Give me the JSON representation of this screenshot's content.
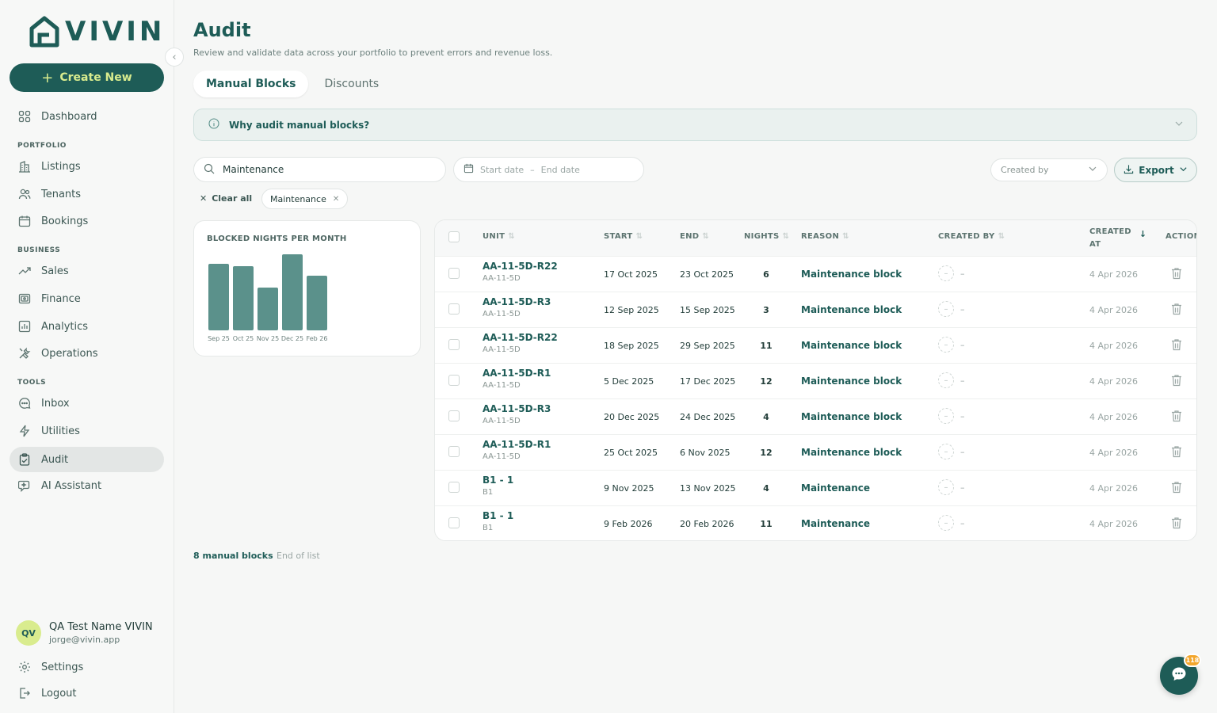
{
  "brand": {
    "name": "VIVIN",
    "color": "#1e5c57",
    "accent": "#d9ec8e"
  },
  "sidebar": {
    "create_label": "Create New",
    "collapse_icon": "chevron-left-icon",
    "dashboard": {
      "label": "Dashboard",
      "icon": "grid-icon"
    },
    "sections": {
      "portfolio": "PORTFOLIO",
      "business": "BUSINESS",
      "tools": "TOOLS"
    },
    "portfolio_items": [
      {
        "label": "Listings",
        "icon": "building-icon"
      },
      {
        "label": "Tenants",
        "icon": "users-icon"
      },
      {
        "label": "Bookings",
        "icon": "calendar-icon"
      }
    ],
    "business_items": [
      {
        "label": "Sales",
        "icon": "trend-up-icon"
      },
      {
        "label": "Finance",
        "icon": "wallet-icon"
      },
      {
        "label": "Analytics",
        "icon": "bar-chart-icon"
      },
      {
        "label": "Operations",
        "icon": "tools-icon"
      }
    ],
    "tools_items": [
      {
        "label": "Inbox",
        "icon": "chat-icon"
      },
      {
        "label": "Utilities",
        "icon": "bolt-icon"
      },
      {
        "label": "Audit",
        "icon": "clipboard-check-icon",
        "active": true
      },
      {
        "label": "AI Assistant",
        "icon": "sparkle-chat-icon"
      }
    ],
    "user": {
      "initials": "QV",
      "name": "QA Test Name VIVIN",
      "email": "jorge@vivin.app"
    },
    "settings_label": "Settings",
    "logout_label": "Logout"
  },
  "page": {
    "title": "Audit",
    "subtitle": "Review and validate data across your portfolio to prevent errors and revenue loss.",
    "tabs": [
      {
        "label": "Manual Blocks",
        "active": true
      },
      {
        "label": "Discounts",
        "active": false
      }
    ],
    "accordion_label": "Why audit manual blocks?"
  },
  "filters": {
    "search_value": "Maintenance",
    "start_date_placeholder": "Start date",
    "date_sep": "–",
    "end_date_placeholder": "End date",
    "created_by_placeholder": "Created by",
    "export_label": "Export",
    "clear_all_label": "Clear all",
    "active_chip": "Maintenance"
  },
  "chart_data": {
    "type": "bar",
    "title": "BLOCKED NIGHTS PER MONTH",
    "categories": [
      "Sep 25",
      "Oct 25",
      "Nov 25",
      "Dec 25",
      "Feb 26"
    ],
    "values": [
      14,
      13.5,
      9,
      16,
      11.5
    ],
    "ylim": [
      0,
      16
    ],
    "bar_color": "#5b918b",
    "grid": false
  },
  "table": {
    "headers": {
      "unit": "UNIT",
      "start": "START",
      "end": "END",
      "nights": "NIGHTS",
      "reason": "REASON",
      "created_by": "CREATED BY",
      "created_at_1": "CREATED",
      "created_at_2": "AT",
      "action": "ACTION"
    },
    "rows": [
      {
        "unit": "AA-11-5D-R22",
        "sub": "AA-11-5D",
        "start": "17 Oct 2025",
        "end": "23 Oct 2025",
        "nights": "6",
        "reason": "Maintenance block",
        "created_by": "–",
        "created_at": "4 Apr 2026"
      },
      {
        "unit": "AA-11-5D-R3",
        "sub": "AA-11-5D",
        "start": "12 Sep 2025",
        "end": "15 Sep 2025",
        "nights": "3",
        "reason": "Maintenance block",
        "created_by": "–",
        "created_at": "4 Apr 2026"
      },
      {
        "unit": "AA-11-5D-R22",
        "sub": "AA-11-5D",
        "start": "18 Sep 2025",
        "end": "29 Sep 2025",
        "nights": "11",
        "reason": "Maintenance block",
        "created_by": "–",
        "created_at": "4 Apr 2026"
      },
      {
        "unit": "AA-11-5D-R1",
        "sub": "AA-11-5D",
        "start": "5 Dec 2025",
        "end": "17 Dec 2025",
        "nights": "12",
        "reason": "Maintenance block",
        "created_by": "–",
        "created_at": "4 Apr 2026"
      },
      {
        "unit": "AA-11-5D-R3",
        "sub": "AA-11-5D",
        "start": "20 Dec 2025",
        "end": "24 Dec 2025",
        "nights": "4",
        "reason": "Maintenance block",
        "created_by": "–",
        "created_at": "4 Apr 2026"
      },
      {
        "unit": "AA-11-5D-R1",
        "sub": "AA-11-5D",
        "start": "25 Oct 2025",
        "end": "6 Nov 2025",
        "nights": "12",
        "reason": "Maintenance block",
        "created_by": "–",
        "created_at": "4 Apr 2026"
      },
      {
        "unit": "B1 - 1",
        "sub": "B1",
        "start": "9 Nov 2025",
        "end": "13 Nov 2025",
        "nights": "4",
        "reason": "Maintenance",
        "created_by": "–",
        "created_at": "4 Apr 2026"
      },
      {
        "unit": "B1 - 1",
        "sub": "B1",
        "start": "9 Feb 2026",
        "end": "20 Feb 2026",
        "nights": "11",
        "reason": "Maintenance",
        "created_by": "–",
        "created_at": "4 Apr 2026"
      }
    ]
  },
  "footer": {
    "count_label": "8 manual blocks",
    "end_label": "End of list"
  },
  "chat": {
    "badge": "118",
    "icon": "chat-bubble-icon"
  }
}
